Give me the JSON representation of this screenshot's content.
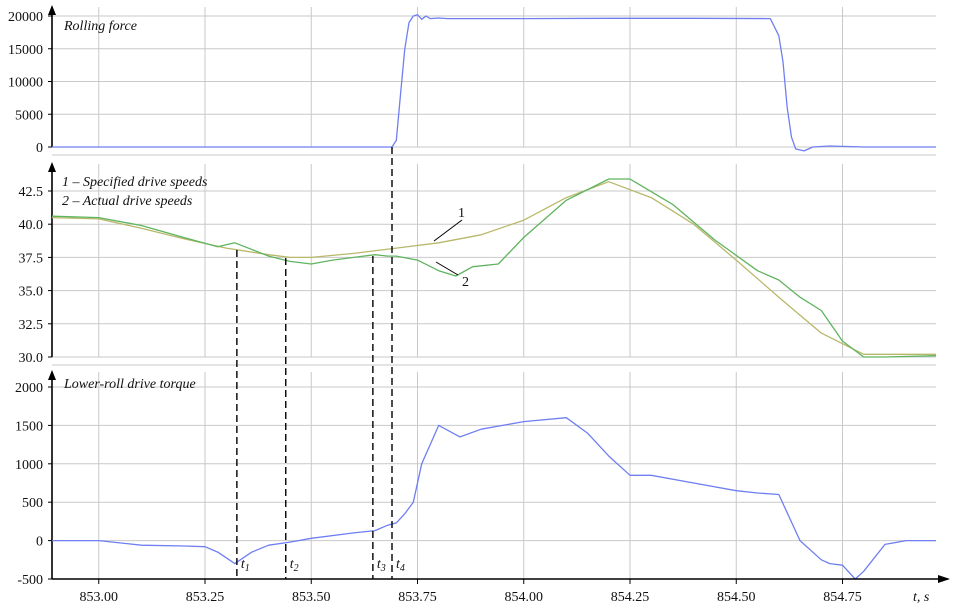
{
  "colors": {
    "blue": "#6f7ff2",
    "green": "#5fb45f",
    "olive": "#b8b86a",
    "grid": "#c9c9c9",
    "axis": "#000000"
  },
  "axis_x_label": "t, s",
  "chart_data": [
    {
      "type": "line",
      "title": "Rolling force",
      "xlim": [
        852.89,
        854.97
      ],
      "ylim": [
        0,
        20000
      ],
      "yticks": [
        0,
        5000,
        10000,
        15000,
        20000
      ],
      "xticks": [
        853.0,
        853.25,
        853.5,
        853.75,
        854.0,
        854.25,
        854.5,
        854.75
      ],
      "grid": true,
      "series": [
        {
          "color": "#6f7ff2",
          "x": [
            852.89,
            853.69,
            853.7,
            853.71,
            853.72,
            853.73,
            853.74,
            853.75,
            853.76,
            853.77,
            853.78,
            853.8,
            853.82,
            854.0,
            854.2,
            854.4,
            854.58,
            854.6,
            854.61,
            854.62,
            854.63,
            854.64,
            854.66,
            854.68,
            854.72,
            854.8,
            854.97
          ],
          "y": [
            0,
            0,
            1000,
            8000,
            15000,
            19000,
            20000,
            20200,
            19500,
            20000,
            19600,
            19700,
            19600,
            19600,
            19650,
            19650,
            19600,
            17000,
            13000,
            6000,
            1500,
            -300,
            -600,
            0,
            150,
            0,
            0
          ]
        }
      ]
    },
    {
      "type": "line",
      "xlim": [
        852.89,
        854.97
      ],
      "ylim": [
        30.0,
        42.5
      ],
      "yticks": [
        30.0,
        32.5,
        35.0,
        37.5,
        40.0,
        42.5
      ],
      "xticks": [
        853.0,
        853.25,
        853.5,
        853.75,
        854.0,
        854.25,
        854.5,
        854.75
      ],
      "grid": true,
      "annotations": [
        "1 – Specified drive speeds",
        "2 – Actual drive speeds"
      ],
      "callouts": [
        "1",
        "2"
      ],
      "series": [
        {
          "color": "#b8b86a",
          "x": [
            852.89,
            853.0,
            853.1,
            853.2,
            853.3,
            853.4,
            853.45,
            853.5,
            853.6,
            853.7,
            853.8,
            853.9,
            854.0,
            854.1,
            854.2,
            854.3,
            854.4,
            854.5,
            854.6,
            854.7,
            854.8,
            854.97
          ],
          "y": [
            40.5,
            40.4,
            39.7,
            38.9,
            38.2,
            37.7,
            37.5,
            37.5,
            37.8,
            38.2,
            38.6,
            39.2,
            40.3,
            42.0,
            43.2,
            42.0,
            40.0,
            37.3,
            34.5,
            31.8,
            30.2,
            30.2
          ]
        },
        {
          "color": "#5fb45f",
          "x": [
            852.89,
            853.0,
            853.1,
            853.2,
            853.28,
            853.32,
            853.4,
            853.45,
            853.5,
            853.55,
            853.6,
            853.65,
            853.68,
            853.7,
            853.75,
            853.8,
            853.84,
            853.88,
            853.94,
            854.0,
            854.1,
            854.2,
            854.25,
            854.35,
            854.45,
            854.55,
            854.6,
            854.65,
            854.7,
            854.75,
            854.8,
            854.85,
            854.97
          ],
          "y": [
            40.6,
            40.5,
            39.9,
            39.0,
            38.3,
            38.6,
            37.6,
            37.2,
            37.0,
            37.3,
            37.5,
            37.7,
            37.6,
            37.6,
            37.3,
            36.5,
            36.1,
            36.8,
            37.0,
            39.0,
            41.8,
            43.4,
            43.4,
            41.5,
            38.8,
            36.5,
            35.8,
            34.5,
            33.5,
            31.2,
            30.0,
            30.0,
            30.1
          ]
        }
      ]
    },
    {
      "type": "line",
      "title": "Lower-roll drive torque",
      "xlim": [
        852.89,
        854.97
      ],
      "ylim": [
        -500,
        2000
      ],
      "yticks": [
        -500,
        0,
        500,
        1000,
        1500,
        2000
      ],
      "xticks": [
        853.0,
        853.25,
        853.5,
        853.75,
        854.0,
        854.25,
        854.5,
        854.75
      ],
      "grid": true,
      "series": [
        {
          "color": "#6f7ff2",
          "x": [
            852.89,
            853.0,
            853.1,
            853.2,
            853.25,
            853.28,
            853.32,
            853.36,
            853.4,
            853.45,
            853.5,
            853.6,
            853.65,
            853.68,
            853.7,
            853.72,
            853.74,
            853.76,
            853.78,
            853.8,
            853.85,
            853.9,
            854.0,
            854.1,
            854.15,
            854.2,
            854.25,
            854.3,
            854.4,
            854.5,
            854.55,
            854.6,
            854.65,
            854.7,
            854.72,
            854.75,
            854.78,
            854.8,
            854.85,
            854.9,
            854.97
          ],
          "y": [
            0,
            0,
            -60,
            -70,
            -80,
            -150,
            -300,
            -150,
            -60,
            -20,
            30,
            100,
            130,
            200,
            230,
            350,
            500,
            1000,
            1250,
            1500,
            1350,
            1450,
            1550,
            1600,
            1400,
            1100,
            850,
            850,
            750,
            650,
            620,
            600,
            0,
            -250,
            -300,
            -320,
            -500,
            -400,
            -50,
            0,
            0
          ]
        }
      ]
    }
  ],
  "markers": [
    {
      "t": 853.325,
      "label": "t",
      "sub": "1"
    },
    {
      "t": 853.44,
      "label": "t",
      "sub": "2"
    },
    {
      "t": 853.645,
      "label": "t",
      "sub": "3"
    },
    {
      "t": 853.69,
      "label": "t",
      "sub": "4"
    }
  ]
}
